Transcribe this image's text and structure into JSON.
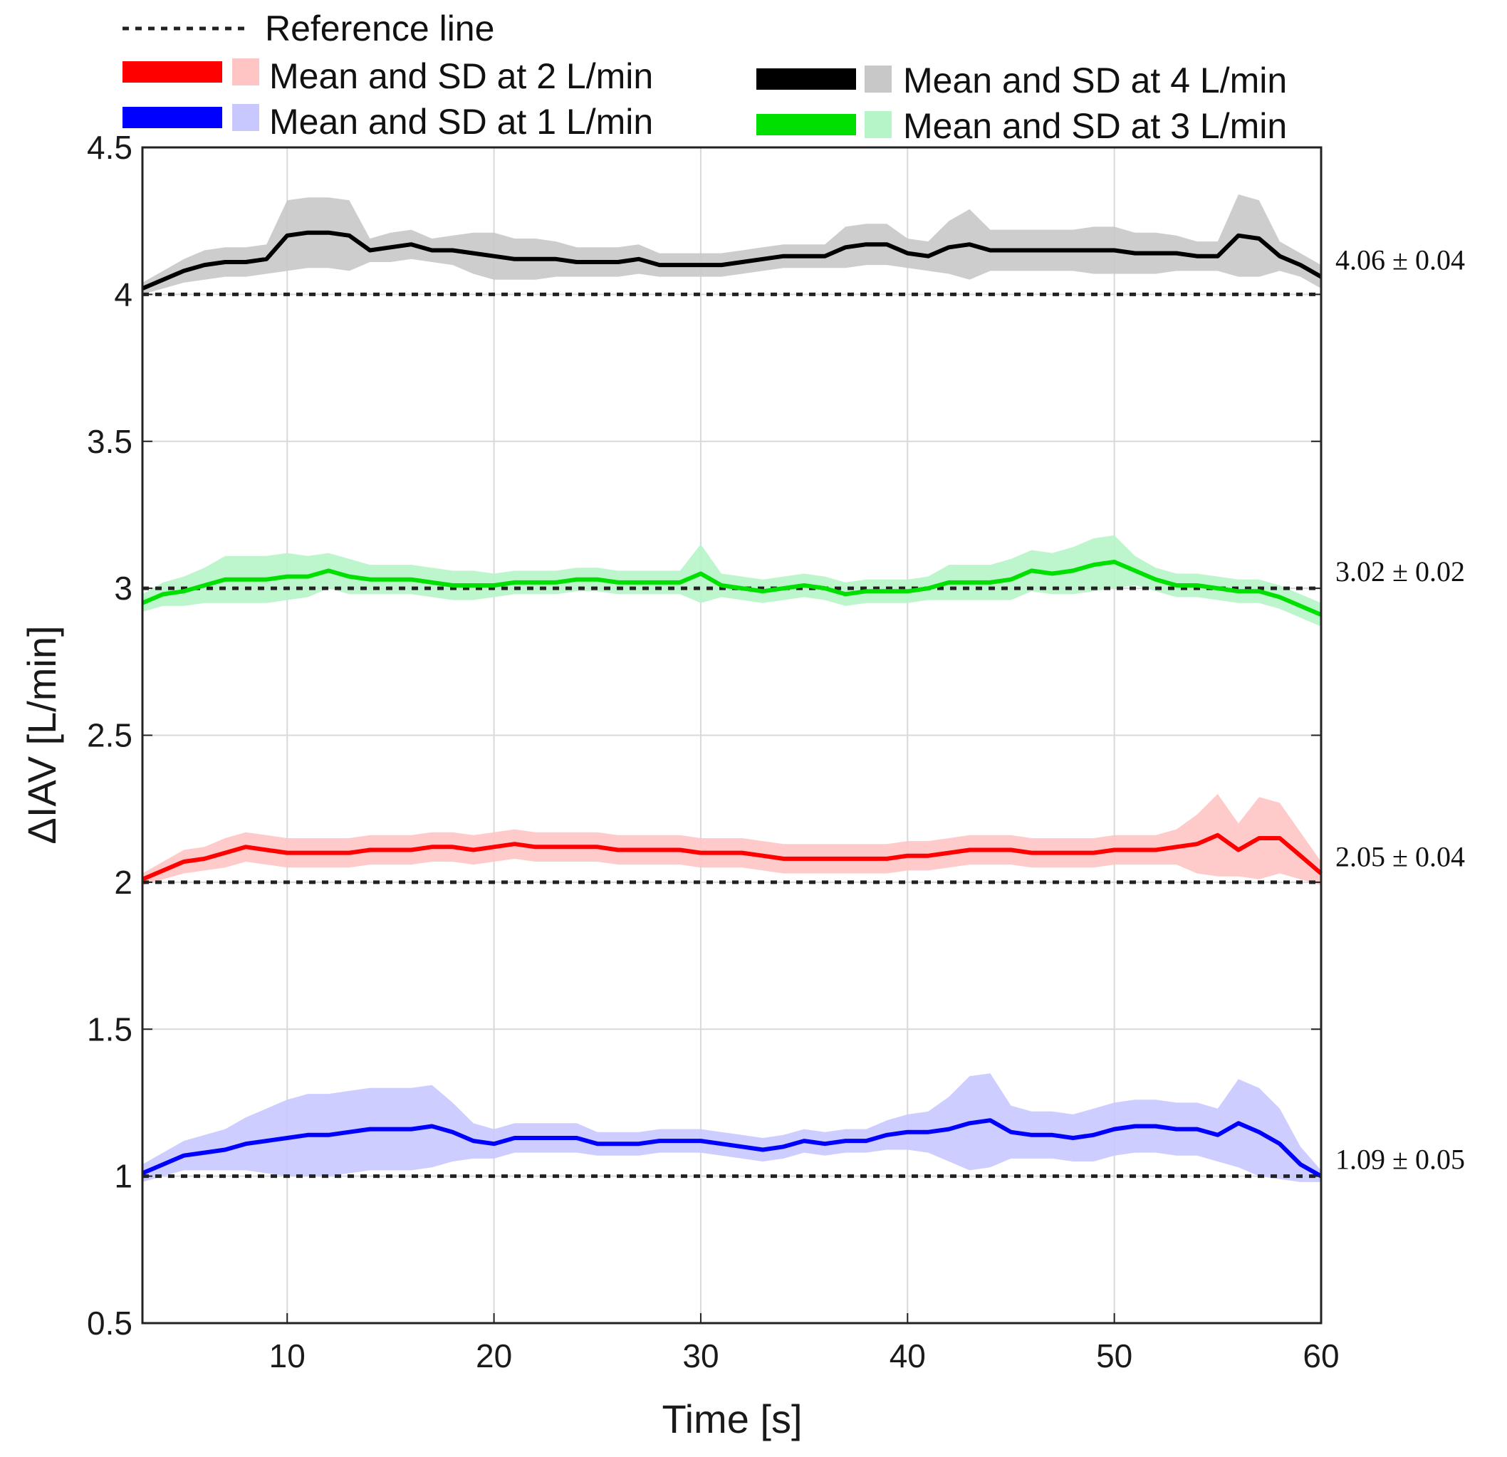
{
  "chart_data": {
    "type": "line",
    "title": "",
    "xlabel": "Time [s]",
    "ylabel": "ΔIAV [L/min]",
    "xlim": [
      3,
      60
    ],
    "ylim": [
      0.5,
      4.5
    ],
    "xticks": [
      10,
      20,
      30,
      40,
      50,
      60
    ],
    "xtick_labels": [
      "10",
      "20",
      "30",
      "40",
      "50",
      "60"
    ],
    "yticks": [
      0.5,
      1,
      1.5,
      2,
      2.5,
      3,
      3.5,
      4,
      4.5
    ],
    "ytick_labels": [
      "0.5",
      "1",
      "1.5",
      "2",
      "2.5",
      "3",
      "3.5",
      "4",
      "4.5"
    ],
    "grid": true,
    "legend_position": "top",
    "reference_label": "Reference line",
    "reference_values": [
      1,
      2,
      3,
      4
    ],
    "x": [
      3,
      4,
      5,
      6,
      7,
      8,
      9,
      10,
      11,
      12,
      13,
      14,
      15,
      16,
      17,
      18,
      19,
      20,
      21,
      22,
      23,
      24,
      25,
      26,
      27,
      28,
      29,
      30,
      31,
      32,
      33,
      34,
      35,
      36,
      37,
      38,
      39,
      40,
      41,
      42,
      43,
      44,
      45,
      46,
      47,
      48,
      49,
      50,
      51,
      52,
      53,
      54,
      55,
      56,
      57,
      58,
      59,
      60
    ],
    "series": [
      {
        "name": "Mean and SD at 4 L/min",
        "line_color": "#000000",
        "band_color": "#c8c8c8",
        "annotation": "4.06 ± 0.04",
        "mean": [
          4.02,
          4.05,
          4.08,
          4.1,
          4.11,
          4.11,
          4.12,
          4.2,
          4.21,
          4.21,
          4.2,
          4.15,
          4.16,
          4.17,
          4.15,
          4.15,
          4.14,
          4.13,
          4.12,
          4.12,
          4.12,
          4.11,
          4.11,
          4.11,
          4.12,
          4.1,
          4.1,
          4.1,
          4.1,
          4.11,
          4.12,
          4.13,
          4.13,
          4.13,
          4.16,
          4.17,
          4.17,
          4.14,
          4.13,
          4.16,
          4.17,
          4.15,
          4.15,
          4.15,
          4.15,
          4.15,
          4.15,
          4.15,
          4.14,
          4.14,
          4.14,
          4.13,
          4.13,
          4.2,
          4.19,
          4.13,
          4.1,
          4.06
        ],
        "sd": [
          0.02,
          0.03,
          0.04,
          0.05,
          0.05,
          0.05,
          0.05,
          0.12,
          0.12,
          0.12,
          0.12,
          0.04,
          0.05,
          0.05,
          0.04,
          0.05,
          0.07,
          0.08,
          0.07,
          0.07,
          0.06,
          0.05,
          0.05,
          0.05,
          0.05,
          0.04,
          0.04,
          0.04,
          0.04,
          0.04,
          0.04,
          0.04,
          0.04,
          0.04,
          0.07,
          0.07,
          0.07,
          0.05,
          0.05,
          0.09,
          0.12,
          0.07,
          0.07,
          0.07,
          0.07,
          0.07,
          0.08,
          0.08,
          0.07,
          0.07,
          0.06,
          0.05,
          0.05,
          0.14,
          0.13,
          0.05,
          0.04,
          0.04
        ]
      },
      {
        "name": "Mean and SD at 3 L/min",
        "line_color": "#00e000",
        "band_color": "#b6f5c8",
        "annotation": "3.02 ± 0.02",
        "mean": [
          2.95,
          2.98,
          2.99,
          3.01,
          3.03,
          3.03,
          3.03,
          3.04,
          3.04,
          3.06,
          3.04,
          3.03,
          3.03,
          3.03,
          3.02,
          3.01,
          3.01,
          3.01,
          3.02,
          3.02,
          3.02,
          3.03,
          3.03,
          3.02,
          3.02,
          3.02,
          3.02,
          3.05,
          3.01,
          3.0,
          2.99,
          3.0,
          3.01,
          3.0,
          2.98,
          2.99,
          2.99,
          2.99,
          3.0,
          3.02,
          3.02,
          3.02,
          3.03,
          3.06,
          3.05,
          3.06,
          3.08,
          3.09,
          3.06,
          3.03,
          3.01,
          3.01,
          3.0,
          2.99,
          2.99,
          2.97,
          2.94,
          2.91
        ],
        "sd": [
          0.03,
          0.04,
          0.05,
          0.06,
          0.08,
          0.08,
          0.08,
          0.08,
          0.07,
          0.06,
          0.06,
          0.05,
          0.05,
          0.05,
          0.05,
          0.05,
          0.05,
          0.04,
          0.04,
          0.04,
          0.04,
          0.04,
          0.04,
          0.04,
          0.04,
          0.04,
          0.04,
          0.1,
          0.04,
          0.04,
          0.04,
          0.04,
          0.04,
          0.04,
          0.04,
          0.04,
          0.04,
          0.04,
          0.04,
          0.06,
          0.06,
          0.06,
          0.07,
          0.07,
          0.07,
          0.08,
          0.09,
          0.09,
          0.05,
          0.04,
          0.04,
          0.04,
          0.04,
          0.04,
          0.04,
          0.04,
          0.04,
          0.04
        ]
      },
      {
        "name": "Mean and SD at 2 L/min",
        "line_color": "#ff0000",
        "band_color": "#ffc4c4",
        "annotation": "2.05 ± 0.04",
        "mean": [
          2.01,
          2.04,
          2.07,
          2.08,
          2.1,
          2.12,
          2.11,
          2.1,
          2.1,
          2.1,
          2.1,
          2.11,
          2.11,
          2.11,
          2.12,
          2.12,
          2.11,
          2.12,
          2.13,
          2.12,
          2.12,
          2.12,
          2.12,
          2.11,
          2.11,
          2.11,
          2.11,
          2.1,
          2.1,
          2.1,
          2.09,
          2.08,
          2.08,
          2.08,
          2.08,
          2.08,
          2.08,
          2.09,
          2.09,
          2.1,
          2.11,
          2.11,
          2.11,
          2.1,
          2.1,
          2.1,
          2.1,
          2.11,
          2.11,
          2.11,
          2.12,
          2.13,
          2.16,
          2.11,
          2.15,
          2.15,
          2.09,
          2.03
        ],
        "sd": [
          0.02,
          0.03,
          0.04,
          0.04,
          0.05,
          0.05,
          0.05,
          0.05,
          0.05,
          0.05,
          0.05,
          0.05,
          0.05,
          0.05,
          0.05,
          0.05,
          0.05,
          0.05,
          0.05,
          0.05,
          0.05,
          0.05,
          0.05,
          0.05,
          0.05,
          0.05,
          0.05,
          0.05,
          0.05,
          0.05,
          0.05,
          0.05,
          0.05,
          0.05,
          0.05,
          0.05,
          0.05,
          0.05,
          0.05,
          0.05,
          0.05,
          0.05,
          0.05,
          0.05,
          0.05,
          0.05,
          0.05,
          0.05,
          0.05,
          0.05,
          0.06,
          0.1,
          0.14,
          0.09,
          0.14,
          0.12,
          0.08,
          0.04
        ]
      },
      {
        "name": "Mean and SD at 1 L/min",
        "line_color": "#0000ff",
        "band_color": "#c8c8ff",
        "annotation": "1.09 ± 0.05",
        "mean": [
          1.01,
          1.04,
          1.07,
          1.08,
          1.09,
          1.11,
          1.12,
          1.13,
          1.14,
          1.14,
          1.15,
          1.16,
          1.16,
          1.16,
          1.17,
          1.15,
          1.12,
          1.11,
          1.13,
          1.13,
          1.13,
          1.13,
          1.11,
          1.11,
          1.11,
          1.12,
          1.12,
          1.12,
          1.11,
          1.1,
          1.09,
          1.1,
          1.12,
          1.11,
          1.12,
          1.12,
          1.14,
          1.15,
          1.15,
          1.16,
          1.18,
          1.19,
          1.15,
          1.14,
          1.14,
          1.13,
          1.14,
          1.16,
          1.17,
          1.17,
          1.16,
          1.16,
          1.14,
          1.18,
          1.15,
          1.11,
          1.04,
          1.0
        ],
        "sd": [
          0.03,
          0.04,
          0.05,
          0.06,
          0.07,
          0.09,
          0.11,
          0.13,
          0.14,
          0.14,
          0.14,
          0.14,
          0.14,
          0.14,
          0.14,
          0.1,
          0.06,
          0.05,
          0.05,
          0.05,
          0.05,
          0.05,
          0.04,
          0.04,
          0.04,
          0.04,
          0.04,
          0.04,
          0.04,
          0.04,
          0.04,
          0.04,
          0.04,
          0.04,
          0.04,
          0.04,
          0.05,
          0.06,
          0.07,
          0.11,
          0.16,
          0.16,
          0.09,
          0.08,
          0.08,
          0.08,
          0.09,
          0.09,
          0.09,
          0.09,
          0.09,
          0.09,
          0.09,
          0.15,
          0.15,
          0.12,
          0.06,
          0.02
        ]
      }
    ],
    "legend": [
      {
        "label": "Mean and SD at 2 L/min",
        "series_index": 2
      },
      {
        "label": "Mean and SD at 4 L/min",
        "series_index": 0
      },
      {
        "label": "Mean and SD at 1 L/min",
        "series_index": 3
      },
      {
        "label": "Mean and SD at 3 L/min",
        "series_index": 1
      }
    ]
  }
}
